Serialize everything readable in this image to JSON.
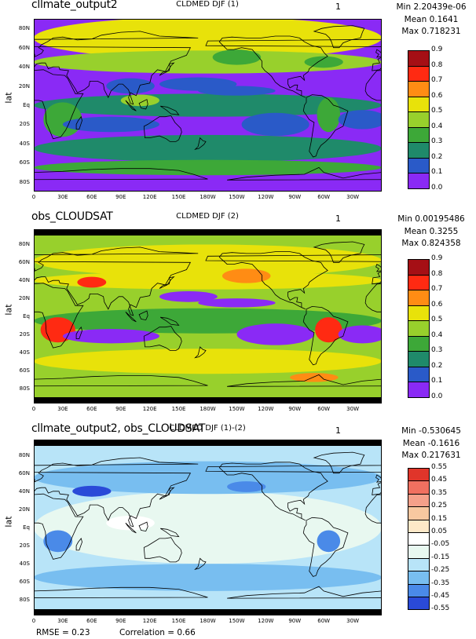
{
  "panels": [
    {
      "model_name": "cllmate_output2",
      "center_title": "CLDMED DJF (1)",
      "case_id": "1",
      "stats": {
        "min": "Min 2.20439e-06",
        "mean": "Mean 0.1641",
        "max": "Max 0.718231"
      },
      "ylabel": "lat",
      "has_top_bar": false,
      "colorbar": {
        "labels": [
          "0.9",
          "0.8",
          "0.7",
          "0.6",
          "0.5",
          "0.4",
          "0.3",
          "0.2",
          "0.1",
          "0.0"
        ],
        "colors": [
          "#a50f15",
          "#ff2a12",
          "#ff8c14",
          "#e8e20a",
          "#98d02c",
          "#3da838",
          "#1f8a6a",
          "#2a5ac8",
          "#8a2af5"
        ]
      }
    },
    {
      "model_name": "obs_CLOUDSAT",
      "center_title": "CLDMED DJF (2)",
      "case_id": "1",
      "stats": {
        "min": "Min 0.00195486",
        "mean": "Mean 0.3255",
        "max": "Max 0.824358"
      },
      "ylabel": "lat",
      "has_top_bar": true,
      "colorbar": {
        "labels": [
          "0.9",
          "0.8",
          "0.7",
          "0.6",
          "0.5",
          "0.4",
          "0.3",
          "0.2",
          "0.1",
          "0.0"
        ],
        "colors": [
          "#a50f15",
          "#ff2a12",
          "#ff8c14",
          "#e8e20a",
          "#98d02c",
          "#3da838",
          "#1f8a6a",
          "#2a5ac8",
          "#8a2af5"
        ]
      }
    },
    {
      "model_name": "cllmate_output2, obs_CLOUDSAT",
      "center_title": "CLDMED DJF (1)-(2)",
      "case_id": "1",
      "stats": {
        "min": "Min -0.530645",
        "mean": "Mean -0.1616",
        "max": "Max 0.217631"
      },
      "ylabel": "lat",
      "has_top_bar": true,
      "colorbar": {
        "labels": [
          "0.55",
          "0.45",
          "0.35",
          "0.25",
          "0.15",
          "0.05",
          "-0.05",
          "-0.15",
          "-0.25",
          "-0.35",
          "-0.45",
          "-0.55"
        ],
        "colors": [
          "#e0352a",
          "#f07060",
          "#f5a08a",
          "#f8c8a0",
          "#fde8c8",
          "#ffffff",
          "#e8f8f0",
          "#b8e4f8",
          "#78bef0",
          "#4a8ae8",
          "#2a4ad8"
        ]
      }
    }
  ],
  "lat_ticks": [
    "80N",
    "60N",
    "40N",
    "20N",
    "Eq",
    "20S",
    "40S",
    "60S",
    "80S"
  ],
  "lon_ticks": [
    "0",
    "30E",
    "60E",
    "90E",
    "120E",
    "150E",
    "180W",
    "150W",
    "120W",
    "90W",
    "60W",
    "30W"
  ],
  "footer": {
    "rmse": "RMSE = 0.23",
    "correlation": "Correlation = 0.66"
  },
  "chart_data": [
    {
      "type": "heatmap",
      "title": "CLDMED DJF (1)",
      "subtitle": "cllmate_output2",
      "ylabel": "lat",
      "x_ticks": [
        "0",
        "30E",
        "60E",
        "90E",
        "120E",
        "150E",
        "180W",
        "150W",
        "120W",
        "90W",
        "60W",
        "30W"
      ],
      "y_ticks": [
        "80N",
        "60N",
        "40N",
        "20N",
        "Eq",
        "20S",
        "40S",
        "60S",
        "80S"
      ],
      "levels": [
        0.0,
        0.1,
        0.2,
        0.3,
        0.4,
        0.5,
        0.6,
        0.7,
        0.8,
        0.9
      ],
      "min": 2.20439e-06,
      "mean": 0.1641,
      "max": 0.718231
    },
    {
      "type": "heatmap",
      "title": "CLDMED DJF (2)",
      "subtitle": "obs_CLOUDSAT",
      "ylabel": "lat",
      "x_ticks": [
        "0",
        "30E",
        "60E",
        "90E",
        "120E",
        "150E",
        "180W",
        "150W",
        "120W",
        "90W",
        "60W",
        "30W"
      ],
      "y_ticks": [
        "80N",
        "60N",
        "40N",
        "20N",
        "Eq",
        "20S",
        "40S",
        "60S",
        "80S"
      ],
      "levels": [
        0.0,
        0.1,
        0.2,
        0.3,
        0.4,
        0.5,
        0.6,
        0.7,
        0.8,
        0.9
      ],
      "min": 0.00195486,
      "mean": 0.3255,
      "max": 0.824358
    },
    {
      "type": "heatmap",
      "title": "CLDMED DJF (1)-(2)",
      "subtitle": "cllmate_output2, obs_CLOUDSAT",
      "ylabel": "lat",
      "x_ticks": [
        "0",
        "30E",
        "60E",
        "90E",
        "120E",
        "150E",
        "180W",
        "150W",
        "120W",
        "90W",
        "60W",
        "30W"
      ],
      "y_ticks": [
        "80N",
        "60N",
        "40N",
        "20N",
        "Eq",
        "20S",
        "40S",
        "60S",
        "80S"
      ],
      "levels": [
        -0.55,
        -0.45,
        -0.35,
        -0.25,
        -0.15,
        -0.05,
        0.05,
        0.15,
        0.25,
        0.35,
        0.45,
        0.55
      ],
      "min": -0.530645,
      "mean": -0.1616,
      "max": 0.217631,
      "rmse": 0.23,
      "correlation": 0.66
    }
  ]
}
